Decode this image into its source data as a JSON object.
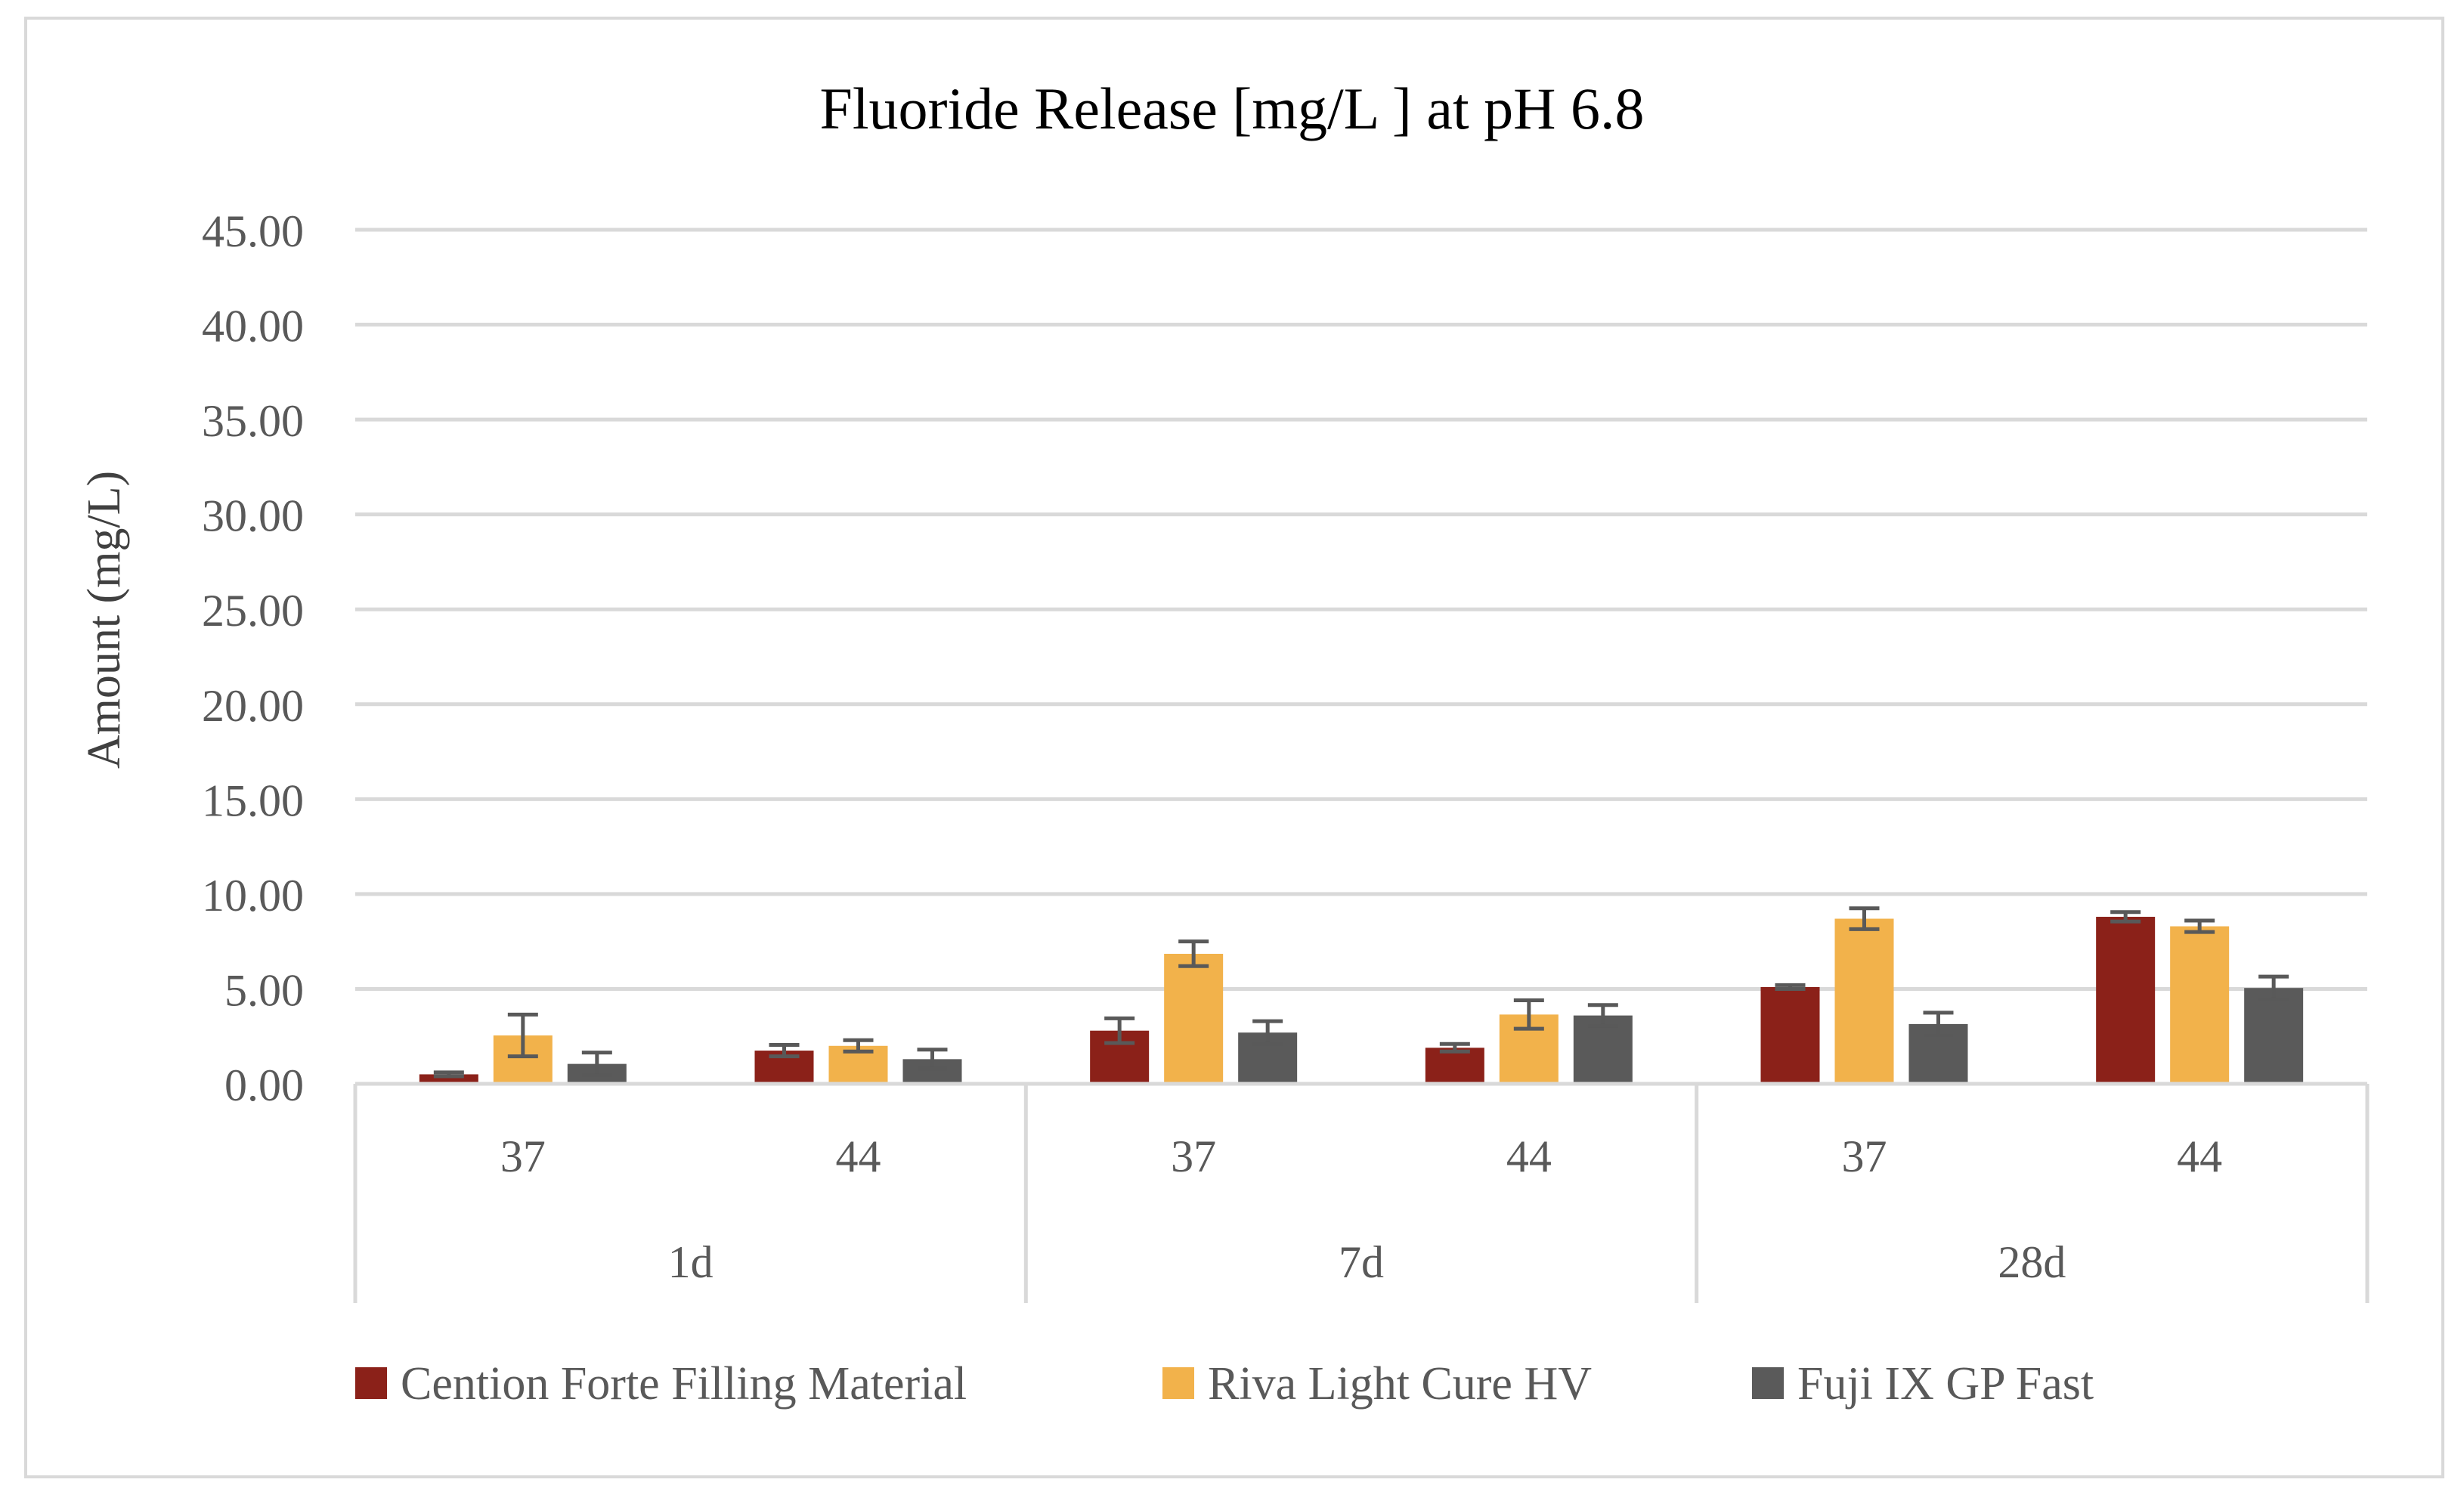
{
  "chart_data": {
    "type": "bar",
    "title": "Fluoride Release [mg/L ] at pH 6.8",
    "ylabel": "Amount (mg/L)",
    "xlabel": "",
    "ylim": [
      0,
      45
    ],
    "yticks": [
      "0.00",
      "5.00",
      "10.00",
      "15.00",
      "20.00",
      "25.00",
      "30.00",
      "35.00",
      "40.00",
      "45.00"
    ],
    "grid": true,
    "legend_position": "bottom",
    "groups": [
      {
        "label": "1d",
        "categories": [
          "37",
          "44"
        ]
      },
      {
        "label": "7d",
        "categories": [
          "37",
          "44"
        ]
      },
      {
        "label": "28d",
        "categories": [
          "37",
          "44"
        ]
      }
    ],
    "series": [
      {
        "name": "Cention Forte Filling Material",
        "color": "#8B2119",
        "values": [
          0.5,
          1.75,
          2.8,
          1.9,
          5.1,
          8.8
        ],
        "errors": [
          0.1,
          0.3,
          0.65,
          0.2,
          0.1,
          0.25
        ]
      },
      {
        "name": "Riva Light Cure HV",
        "color": "#F2B24B",
        "values": [
          2.55,
          2.0,
          6.85,
          3.65,
          8.7,
          8.3
        ],
        "errors": [
          1.1,
          0.3,
          0.65,
          0.75,
          0.55,
          0.3
        ]
      },
      {
        "name": "Fuji IX GP Fast",
        "color": "#5A5A5A",
        "values": [
          1.05,
          1.3,
          2.7,
          3.6,
          3.15,
          5.05
        ],
        "errors": [
          0.6,
          0.5,
          0.6,
          0.55,
          0.6,
          0.6
        ]
      }
    ]
  }
}
